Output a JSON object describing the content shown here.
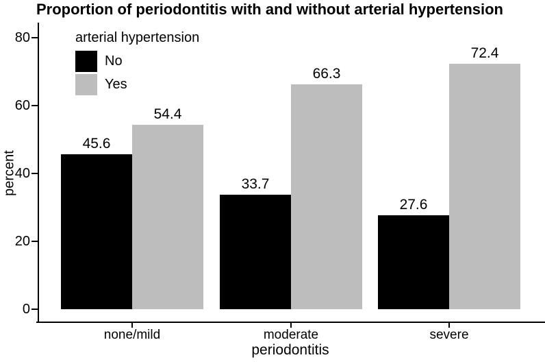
{
  "title": "Proportion of periodontitis with and without arterial hypertension",
  "chart_data": {
    "type": "bar",
    "subtype": "grouped",
    "categories": [
      "none/mild",
      "moderate",
      "severe"
    ],
    "series": [
      {
        "name": "No",
        "color": "#000000",
        "values": [
          45.6,
          33.7,
          27.6
        ]
      },
      {
        "name": "Yes",
        "color": "#bdbdbd",
        "values": [
          54.4,
          66.3,
          72.4
        ]
      }
    ],
    "bar_value_labels": [
      [
        "45.6",
        "33.7",
        "27.6"
      ],
      [
        "54.4",
        "66.3",
        "72.4"
      ]
    ],
    "xlabel": "periodontitis",
    "ylabel": "percent",
    "ylim": [
      0,
      80
    ],
    "yticks": [
      0,
      20,
      40,
      60,
      80
    ],
    "legend_title": "arterial hypertension",
    "legend_position": "inside-top-left",
    "grid": false,
    "background_color": "#ffffff",
    "text_color": "#000000"
  }
}
